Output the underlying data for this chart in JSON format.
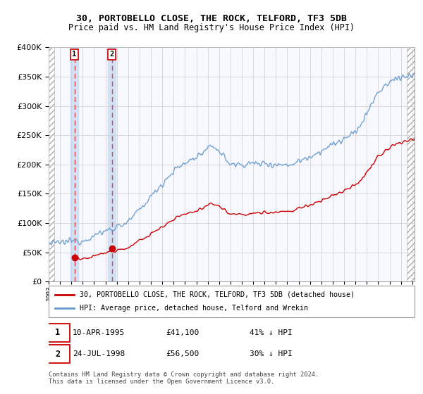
{
  "title": "30, PORTOBELLO CLOSE, THE ROCK, TELFORD, TF3 5DB",
  "subtitle": "Price paid vs. HM Land Registry's House Price Index (HPI)",
  "legend_label_red": "30, PORTOBELLO CLOSE, THE ROCK, TELFORD, TF3 5DB (detached house)",
  "legend_label_blue": "HPI: Average price, detached house, Telford and Wrekin",
  "sale1_date": "10-APR-1995",
  "sale1_price": 41100,
  "sale1_label": "41% ↓ HPI",
  "sale2_date": "24-JUL-1998",
  "sale2_price": 56500,
  "sale2_label": "30% ↓ HPI",
  "footnote": "Contains HM Land Registry data © Crown copyright and database right 2024.\nThis data is licensed under the Open Government Licence v3.0.",
  "ylim": [
    0,
    400000
  ],
  "yticks": [
    0,
    50000,
    100000,
    150000,
    200000,
    250000,
    300000,
    350000,
    400000
  ],
  "grid_color": "#cccccc",
  "red_line_color": "#cc0000",
  "blue_line_color": "#6699cc",
  "dashed_vline_color": "#dd4444",
  "sale1_x": 1995.27,
  "sale2_x": 1998.56,
  "xmin": 1993.0,
  "xmax": 2025.2
}
